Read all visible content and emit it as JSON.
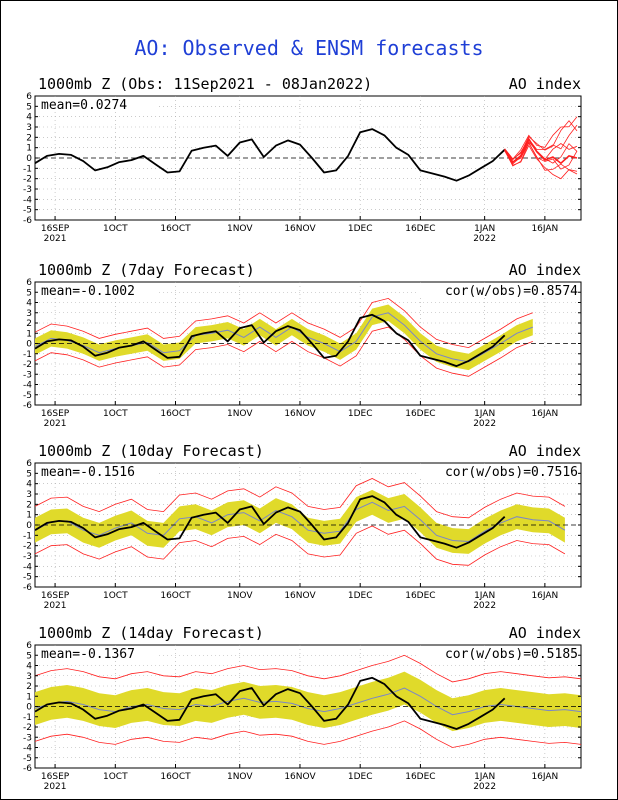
{
  "title": "AO: Observed & ENSM forecasts",
  "colors": {
    "title": "#1f3fd6",
    "observed": "#000000",
    "ensemble_band": "#e0da2a",
    "ensemble_mean": "#7a86c8",
    "member_spread": "#ff2020",
    "zero_line": "#000000",
    "grid": "#aaaaaa"
  },
  "chart_data": [
    {
      "type": "line",
      "title": "1000mb Z (Obs: 11Sep2021 - 08Jan2022)",
      "right_title": "AO index",
      "stat_left": "mean=0.0274",
      "stat_right": "",
      "ylim": [
        -6,
        6
      ],
      "yticks": [
        6,
        5,
        4,
        3,
        2,
        1,
        0,
        -1,
        -2,
        -3,
        -4,
        -5,
        -6
      ],
      "xlim": [
        0,
        136
      ],
      "xticks": [
        {
          "x": 5,
          "label": "16SEP",
          "year": "2021"
        },
        {
          "x": 20,
          "label": "1OCT",
          "year": ""
        },
        {
          "x": 35,
          "label": "16OCT",
          "year": ""
        },
        {
          "x": 51,
          "label": "1NOV",
          "year": ""
        },
        {
          "x": 66,
          "label": "16NOV",
          "year": ""
        },
        {
          "x": 81,
          "label": "1DEC",
          "year": ""
        },
        {
          "x": 96,
          "label": "16DEC",
          "year": ""
        },
        {
          "x": 112,
          "label": "1JAN",
          "year": "2022"
        },
        {
          "x": 127,
          "label": "16JAN",
          "year": ""
        }
      ],
      "grid": true,
      "observed": {
        "x": [
          0,
          3,
          6,
          9,
          12,
          15,
          18,
          21,
          24,
          27,
          30,
          33,
          36,
          39,
          42,
          45,
          48,
          51,
          54,
          57,
          60,
          63,
          66,
          69,
          72,
          75,
          78,
          81,
          84,
          87,
          90,
          93,
          96,
          99,
          102,
          105,
          108,
          111,
          114,
          117
        ],
        "y": [
          -0.5,
          0.2,
          0.4,
          0.3,
          -0.3,
          -1.2,
          -0.9,
          -0.4,
          -0.2,
          0.2,
          -0.6,
          -1.4,
          -1.3,
          0.7,
          1.0,
          1.2,
          0.2,
          1.5,
          1.8,
          0.1,
          1.2,
          1.7,
          1.3,
          0.0,
          -1.4,
          -1.2,
          0.2,
          2.5,
          2.8,
          2.2,
          1.0,
          0.3,
          -1.2,
          -1.5,
          -1.8,
          -2.2,
          -1.7,
          -1.0,
          -0.3,
          0.8
        ]
      },
      "members": {
        "x": [
          117,
          119,
          121,
          123,
          125,
          127,
          129,
          131,
          133,
          135
        ],
        "mean": [
          0.8,
          -0.4,
          0.2,
          1.8,
          0.6,
          -0.2,
          0.1,
          -0.5,
          0.2,
          0.0
        ],
        "high": [
          0.9,
          0.0,
          0.8,
          2.2,
          1.4,
          1.2,
          2.2,
          3.0,
          3.8,
          4.0
        ],
        "low": [
          0.7,
          -0.8,
          -0.4,
          1.2,
          -0.2,
          -1.2,
          -1.6,
          -2.0,
          -1.8,
          -1.6
        ],
        "count": 8
      }
    },
    {
      "type": "line",
      "title": "1000mb Z (7day Forecast)",
      "right_title": "AO index",
      "stat_left": "mean=-0.1002",
      "stat_right": "cor(w/obs)=0.8574",
      "ylim": [
        -6,
        6
      ],
      "yticks": [
        6,
        5,
        4,
        3,
        2,
        1,
        0,
        -1,
        -2,
        -3,
        -4,
        -5,
        -6
      ],
      "xlim": [
        0,
        136
      ],
      "xticks": [
        {
          "x": 5,
          "label": "16SEP",
          "year": "2021"
        },
        {
          "x": 20,
          "label": "1OCT",
          "year": ""
        },
        {
          "x": 35,
          "label": "16OCT",
          "year": ""
        },
        {
          "x": 51,
          "label": "1NOV",
          "year": ""
        },
        {
          "x": 66,
          "label": "16NOV",
          "year": ""
        },
        {
          "x": 81,
          "label": "1DEC",
          "year": ""
        },
        {
          "x": 96,
          "label": "16DEC",
          "year": ""
        },
        {
          "x": 112,
          "label": "1JAN",
          "year": "2022"
        },
        {
          "x": 127,
          "label": "16JAN",
          "year": ""
        }
      ],
      "grid": true,
      "observed": {
        "x": [
          0,
          3,
          6,
          9,
          12,
          15,
          18,
          21,
          24,
          27,
          30,
          33,
          36,
          39,
          42,
          45,
          48,
          51,
          54,
          57,
          60,
          63,
          66,
          69,
          72,
          75,
          78,
          81,
          84,
          87,
          90,
          93,
          96,
          99,
          102,
          105,
          108,
          111,
          114,
          117
        ],
        "y": [
          -0.5,
          0.2,
          0.4,
          0.3,
          -0.3,
          -1.2,
          -0.9,
          -0.4,
          -0.2,
          0.2,
          -0.6,
          -1.4,
          -1.3,
          0.7,
          1.0,
          1.2,
          0.2,
          1.5,
          1.8,
          0.1,
          1.2,
          1.7,
          1.3,
          0.0,
          -1.4,
          -1.2,
          0.2,
          2.5,
          2.8,
          2.2,
          1.0,
          0.3,
          -1.2,
          -1.5,
          -1.8,
          -2.2,
          -1.7,
          -1.0,
          -0.3,
          0.8
        ]
      },
      "forecast": {
        "x": [
          0,
          4,
          8,
          12,
          16,
          20,
          24,
          28,
          32,
          36,
          40,
          44,
          48,
          52,
          56,
          60,
          64,
          68,
          72,
          76,
          80,
          84,
          88,
          92,
          96,
          100,
          104,
          108,
          112,
          116,
          120,
          124
        ],
        "mean": [
          -0.3,
          0.5,
          0.3,
          -0.2,
          -0.9,
          -0.5,
          -0.2,
          0.1,
          -0.9,
          -0.7,
          0.8,
          1.0,
          1.3,
          0.6,
          1.6,
          0.6,
          1.6,
          0.6,
          0.0,
          -0.8,
          0.2,
          2.6,
          3.0,
          1.8,
          0.2,
          -1.0,
          -1.5,
          -1.8,
          -0.9,
          0.0,
          1.0,
          1.6
        ],
        "band": 0.8,
        "spread": 1.4
      }
    },
    {
      "type": "line",
      "title": "1000mb Z (10day Forecast)",
      "right_title": "AO index",
      "stat_left": "mean=-0.1516",
      "stat_right": "cor(w/obs)=0.7516",
      "ylim": [
        -6,
        6
      ],
      "yticks": [
        6,
        5,
        4,
        3,
        2,
        1,
        0,
        -1,
        -2,
        -3,
        -4,
        -5,
        -6
      ],
      "xlim": [
        0,
        136
      ],
      "xticks": [
        {
          "x": 5,
          "label": "16SEP",
          "year": "2021"
        },
        {
          "x": 20,
          "label": "1OCT",
          "year": ""
        },
        {
          "x": 35,
          "label": "16OCT",
          "year": ""
        },
        {
          "x": 51,
          "label": "1NOV",
          "year": ""
        },
        {
          "x": 66,
          "label": "16NOV",
          "year": ""
        },
        {
          "x": 81,
          "label": "1DEC",
          "year": ""
        },
        {
          "x": 96,
          "label": "16DEC",
          "year": ""
        },
        {
          "x": 112,
          "label": "1JAN",
          "year": "2022"
        },
        {
          "x": 127,
          "label": "16JAN",
          "year": ""
        }
      ],
      "grid": true,
      "observed": {
        "x": [
          0,
          3,
          6,
          9,
          12,
          15,
          18,
          21,
          24,
          27,
          30,
          33,
          36,
          39,
          42,
          45,
          48,
          51,
          54,
          57,
          60,
          63,
          66,
          69,
          72,
          75,
          78,
          81,
          84,
          87,
          90,
          93,
          96,
          99,
          102,
          105,
          108,
          111,
          114,
          117
        ],
        "y": [
          -0.5,
          0.2,
          0.4,
          0.3,
          -0.3,
          -1.2,
          -0.9,
          -0.4,
          -0.2,
          0.2,
          -0.6,
          -1.4,
          -1.3,
          0.7,
          1.0,
          1.2,
          0.2,
          1.5,
          1.8,
          0.1,
          1.2,
          1.7,
          1.3,
          0.0,
          -1.4,
          -1.2,
          0.2,
          2.5,
          2.8,
          2.2,
          1.0,
          0.3,
          -1.2,
          -1.5,
          -1.8,
          -2.2,
          -1.7,
          -1.0,
          -0.3,
          0.8
        ]
      },
      "forecast": {
        "x": [
          0,
          4,
          8,
          12,
          16,
          20,
          24,
          28,
          32,
          36,
          40,
          44,
          48,
          52,
          56,
          60,
          64,
          68,
          72,
          76,
          80,
          84,
          88,
          92,
          96,
          100,
          104,
          108,
          112,
          116,
          120,
          124,
          128,
          132
        ],
        "mean": [
          -0.5,
          0.3,
          0.4,
          -0.5,
          -1.0,
          -0.3,
          0.2,
          -0.8,
          -1.0,
          0.6,
          0.8,
          0.2,
          1.0,
          1.2,
          0.4,
          1.4,
          0.8,
          -0.5,
          -0.8,
          -0.6,
          1.5,
          2.2,
          1.4,
          1.8,
          0.5,
          -1.0,
          -1.5,
          -1.6,
          -0.6,
          0.2,
          0.8,
          0.5,
          0.4,
          -0.5
        ],
        "band": 1.2,
        "spread": 2.3
      }
    },
    {
      "type": "line",
      "title": "1000mb Z (14day Forecast)",
      "right_title": "AO index",
      "stat_left": "mean=-0.1367",
      "stat_right": "cor(w/obs)=0.5185",
      "ylim": [
        -6,
        6
      ],
      "yticks": [
        6,
        5,
        4,
        3,
        2,
        1,
        0,
        -1,
        -2,
        -3,
        -4,
        -5,
        -6
      ],
      "xlim": [
        0,
        136
      ],
      "xticks": [
        {
          "x": 5,
          "label": "16SEP",
          "year": "2021"
        },
        {
          "x": 20,
          "label": "1OCT",
          "year": ""
        },
        {
          "x": 35,
          "label": "16OCT",
          "year": ""
        },
        {
          "x": 51,
          "label": "1NOV",
          "year": ""
        },
        {
          "x": 66,
          "label": "16NOV",
          "year": ""
        },
        {
          "x": 81,
          "label": "1DEC",
          "year": ""
        },
        {
          "x": 96,
          "label": "16DEC",
          "year": ""
        },
        {
          "x": 112,
          "label": "1JAN",
          "year": "2022"
        },
        {
          "x": 127,
          "label": "16JAN",
          "year": ""
        }
      ],
      "grid": true,
      "observed": {
        "x": [
          0,
          3,
          6,
          9,
          12,
          15,
          18,
          21,
          24,
          27,
          30,
          33,
          36,
          39,
          42,
          45,
          48,
          51,
          54,
          57,
          60,
          63,
          66,
          69,
          72,
          75,
          78,
          81,
          84,
          87,
          90,
          93,
          96,
          99,
          102,
          105,
          108,
          111,
          114,
          117
        ],
        "y": [
          -0.5,
          0.2,
          0.4,
          0.3,
          -0.3,
          -1.2,
          -0.9,
          -0.4,
          -0.2,
          0.2,
          -0.6,
          -1.4,
          -1.3,
          0.7,
          1.0,
          1.2,
          0.2,
          1.5,
          1.8,
          0.1,
          1.2,
          1.7,
          1.3,
          0.0,
          -1.4,
          -1.2,
          0.2,
          2.5,
          2.8,
          2.2,
          1.0,
          0.3,
          -1.2,
          -1.5,
          -1.8,
          -2.2,
          -1.7,
          -1.0,
          -0.3,
          0.8
        ]
      },
      "forecast": {
        "x": [
          0,
          4,
          8,
          12,
          16,
          20,
          24,
          28,
          32,
          36,
          40,
          44,
          48,
          52,
          56,
          60,
          64,
          68,
          72,
          76,
          80,
          84,
          88,
          92,
          96,
          100,
          104,
          108,
          112,
          116,
          120,
          124,
          128,
          132,
          136
        ],
        "mean": [
          -0.2,
          0.3,
          0.5,
          0.2,
          -0.3,
          -0.5,
          0.0,
          0.2,
          -0.2,
          -0.3,
          0.2,
          0.0,
          0.5,
          0.8,
          0.4,
          0.5,
          0.3,
          -0.2,
          -0.5,
          -0.2,
          0.3,
          0.8,
          1.2,
          1.8,
          1.0,
          0.0,
          -0.8,
          -0.5,
          0.0,
          0.2,
          0.0,
          -0.2,
          -0.4,
          -0.3,
          -0.5
        ],
        "band": 1.6,
        "spread": 3.2
      }
    }
  ]
}
